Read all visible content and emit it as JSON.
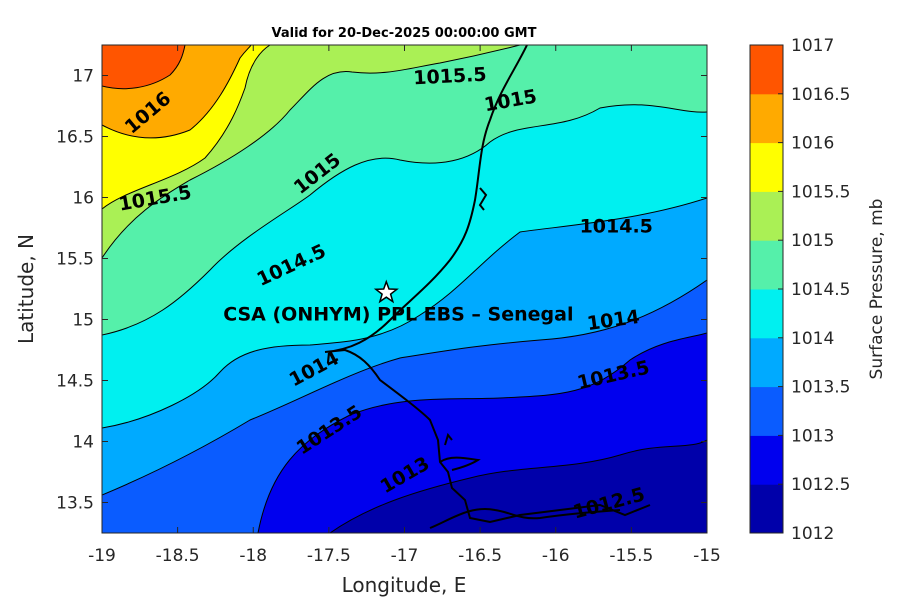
{
  "chart_data": {
    "type": "contour",
    "title": "Valid for 20-Dec-2025 00:00:00 GMT",
    "xlabel": "Longitude, E",
    "ylabel": "Latitude, N",
    "xlim": [
      -19,
      -15
    ],
    "ylim": [
      13.25,
      17.25
    ],
    "x_ticks": [
      "-19",
      "-18.5",
      "-18",
      "-17.5",
      "-17",
      "-16.5",
      "-16",
      "-15.5",
      "-15"
    ],
    "y_ticks": [
      "13.5",
      "14",
      "14.5",
      "15",
      "15.5",
      "16",
      "16.5",
      "17"
    ],
    "colorbar": {
      "label": "Surface Pressure, mb",
      "ticks": [
        "1012",
        "1012.5",
        "1013",
        "1013.5",
        "1014",
        "1014.5",
        "1015",
        "1015.5",
        "1016",
        "1016.5",
        "1017"
      ],
      "colors": [
        "#0000aa",
        "#0000ee",
        "#0a5cff",
        "#00aaff",
        "#00f0f0",
        "#55f0aa",
        "#aaf055",
        "#ffff00",
        "#ffaa00",
        "#ff5500",
        "#ff0000"
      ]
    },
    "contour_levels": [
      1012.5,
      1013,
      1013.5,
      1014,
      1014.5,
      1015,
      1015.5,
      1016
    ],
    "contour_labels": [
      {
        "text": "1015.5",
        "lon": -16.7,
        "lat": 17.0,
        "angle": -3
      },
      {
        "text": "1016",
        "lon": -18.7,
        "lat": 16.7,
        "angle": -40
      },
      {
        "text": "1015",
        "lon": -16.3,
        "lat": 16.8,
        "angle": -10
      },
      {
        "text": "1015.5",
        "lon": -18.65,
        "lat": 16.0,
        "angle": -10
      },
      {
        "text": "1015",
        "lon": -17.58,
        "lat": 16.2,
        "angle": -38
      },
      {
        "text": "1014.5",
        "lon": -15.6,
        "lat": 15.77,
        "angle": 0
      },
      {
        "text": "1014.5",
        "lon": -17.75,
        "lat": 15.45,
        "angle": -25
      },
      {
        "text": "1014",
        "lon": -15.62,
        "lat": 15.0,
        "angle": -8
      },
      {
        "text": "1014",
        "lon": -17.6,
        "lat": 14.6,
        "angle": -28
      },
      {
        "text": "1013.5",
        "lon": -15.62,
        "lat": 14.55,
        "angle": -13
      },
      {
        "text": "1013.5",
        "lon": -17.5,
        "lat": 14.1,
        "angle": -33
      },
      {
        "text": "1013",
        "lon": -17.0,
        "lat": 13.73,
        "angle": -30
      },
      {
        "text": "1012.5",
        "lon": -15.65,
        "lat": 13.5,
        "angle": -15
      }
    ],
    "site": {
      "name": "CSA (ONHYM) PPL EBS  – Senegal",
      "lon": -17.12,
      "lat": 15.22,
      "marker": "star"
    }
  }
}
